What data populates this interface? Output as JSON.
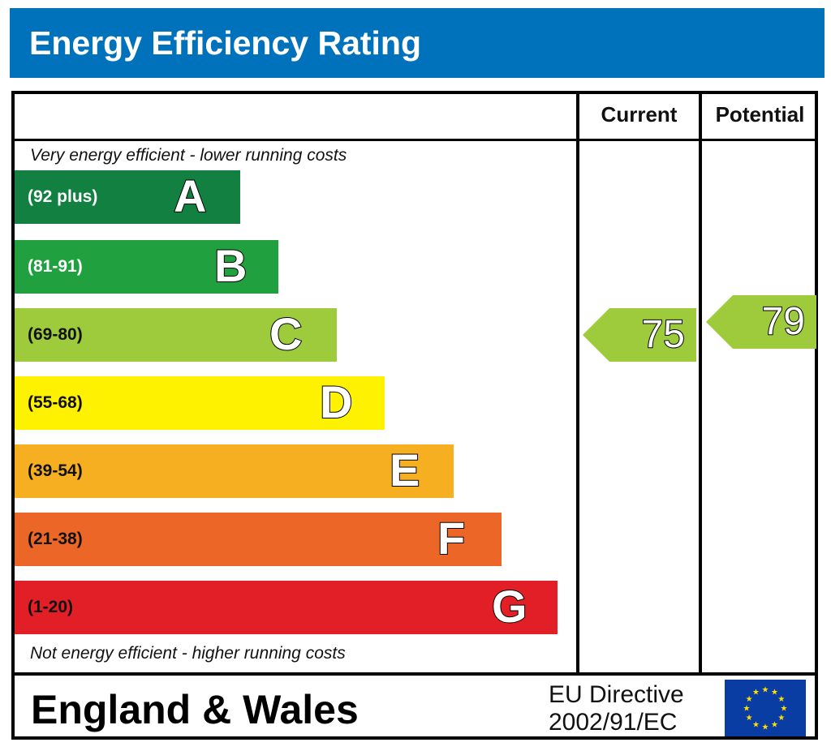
{
  "header": {
    "title": "Energy Efficiency Rating"
  },
  "columns": {
    "current": "Current",
    "potential": "Potential"
  },
  "notes": {
    "top": "Very energy efficient - lower running costs",
    "bottom": "Not energy efficient - higher running costs"
  },
  "chart_data": {
    "type": "bar",
    "categories": [
      "A",
      "B",
      "C",
      "D",
      "E",
      "F",
      "G"
    ],
    "ranges": [
      "(92 plus)",
      "(81-91)",
      "(69-80)",
      "(55-68)",
      "(39-54)",
      "(21-38)",
      "(1-20)"
    ],
    "colors": [
      "#118040",
      "#21a03f",
      "#9dcb3c",
      "#fff200",
      "#f7af22",
      "#ec6727",
      "#e21e26"
    ],
    "current": {
      "value": "75",
      "band": "C"
    },
    "potential": {
      "value": "79",
      "band": "C"
    }
  },
  "footer": {
    "region": "England & Wales",
    "directive_line1": "EU Directive",
    "directive_line2": "2002/91/EC"
  },
  "flag": {
    "name": "eu-flag",
    "color": "#0a3da3",
    "star_color": "#ffde00"
  }
}
